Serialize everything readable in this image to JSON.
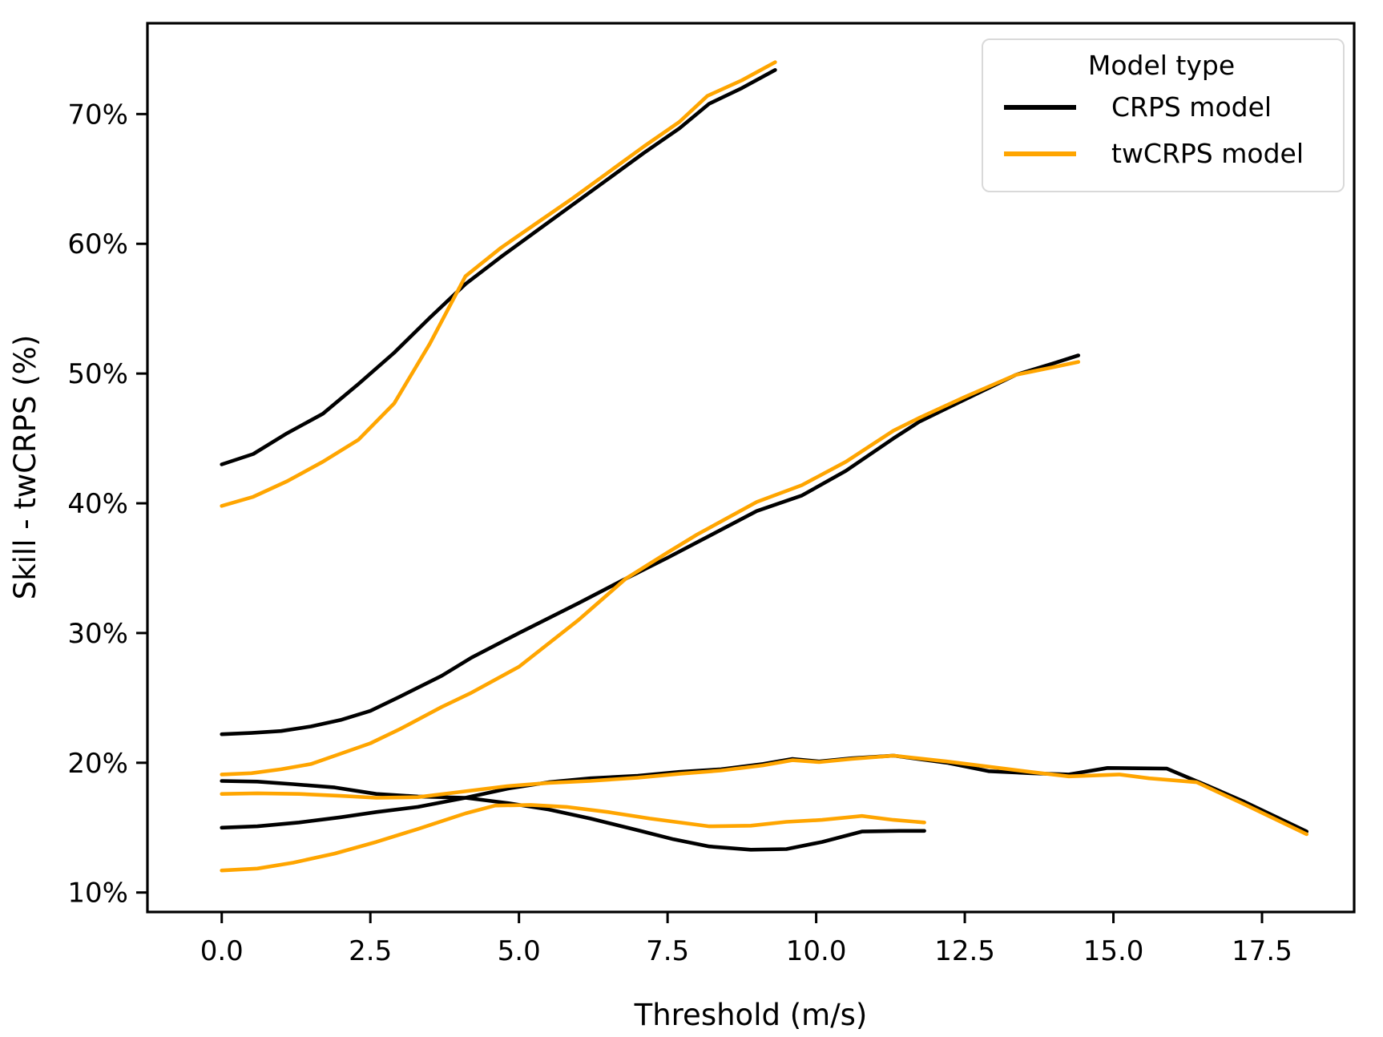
{
  "figure": {
    "background": "#ffffff",
    "text_color": "#000000"
  },
  "legend": {
    "title": "Model type",
    "entries": [
      {
        "key": "crps",
        "label": "CRPS model",
        "color": "#000000"
      },
      {
        "key": "twcrps",
        "label": "twCRPS model",
        "color": "#FFA500"
      }
    ]
  },
  "chart_data": {
    "type": "line",
    "title": "",
    "xlabel": "Threshold (m/s)",
    "ylabel": "Skill - twCRPS (%)",
    "xlim": [
      -1.25,
      19.05
    ],
    "ylim": [
      8.5,
      77.0
    ],
    "grid": false,
    "legend_position": "upper right",
    "x_ticks": {
      "values": [
        0,
        2.5,
        5,
        7.5,
        10,
        12.5,
        15,
        17.5
      ],
      "labels": [
        "0.0",
        "2.5",
        "5.0",
        "7.5",
        "10.0",
        "12.5",
        "15.0",
        "17.5"
      ]
    },
    "y_ticks": {
      "values": [
        10,
        20,
        30,
        40,
        50,
        60,
        70
      ],
      "labels": [
        "10%",
        "20%",
        "30%",
        "40%",
        "50%",
        "60%",
        "70%"
      ]
    },
    "series": [
      {
        "key": "crps-curve-a",
        "model": "CRPS model",
        "color": "#000000",
        "x": [
          0,
          0.53,
          1.1,
          1.7,
          2.3,
          2.9,
          3.5,
          4.1,
          4.7,
          5.3,
          5.9,
          6.5,
          7.1,
          7.7,
          8.2,
          8.75,
          9.31
        ],
        "y": [
          43.0,
          43.8,
          45.4,
          46.9,
          49.2,
          51.6,
          54.3,
          56.9,
          59.0,
          61.0,
          63.0,
          65.0,
          67.0,
          68.9,
          70.8,
          72.0,
          73.4
        ]
      },
      {
        "key": "crps-curve-b",
        "model": "CRPS model",
        "color": "#000000",
        "x": [
          0,
          0.5,
          1,
          1.5,
          2,
          2.5,
          3,
          3.7,
          4.2,
          5,
          6,
          6.8,
          7.5,
          8,
          9,
          9.76,
          10.5,
          11.3,
          11.74,
          12.5,
          13.36,
          14,
          14.41
        ],
        "y": [
          22.2,
          22.3,
          22.45,
          22.8,
          23.3,
          24.0,
          25.1,
          26.7,
          28.1,
          30.0,
          32.3,
          34.2,
          35.8,
          37.0,
          39.4,
          40.6,
          42.5,
          45.0,
          46.3,
          48.0,
          49.9,
          50.8,
          51.4
        ]
      },
      {
        "key": "crps-curve-c",
        "model": "CRPS model",
        "color": "#000000",
        "x": [
          0,
          0.6,
          1.3,
          2,
          2.6,
          3.3,
          4.1,
          4.8,
          5.5,
          6.2,
          7,
          7.7,
          8.4,
          9.1,
          9.6,
          10.05,
          10.6,
          11.3,
          12.2,
          12.9,
          13.6,
          14.25,
          14.9,
          15.9,
          16.6,
          17.2,
          18.25
        ],
        "y": [
          15.0,
          15.1,
          15.4,
          15.8,
          16.2,
          16.6,
          17.3,
          18.0,
          18.5,
          18.8,
          19.0,
          19.3,
          19.5,
          19.9,
          20.3,
          20.1,
          20.35,
          20.55,
          20.0,
          19.35,
          19.2,
          19.1,
          19.6,
          19.55,
          18.2,
          17.0,
          14.7
        ]
      },
      {
        "key": "crps-curve-d",
        "model": "CRPS model",
        "color": "#000000",
        "x": [
          0,
          0.6,
          1.2,
          1.9,
          2.6,
          3.3,
          4.1,
          4.8,
          5.5,
          6.2,
          7,
          7.6,
          8.2,
          8.9,
          9.5,
          10.1,
          10.77,
          11.4,
          11.82
        ],
        "y": [
          18.6,
          18.55,
          18.35,
          18.1,
          17.6,
          17.4,
          17.3,
          16.9,
          16.4,
          15.7,
          14.8,
          14.1,
          13.55,
          13.3,
          13.35,
          13.9,
          14.7,
          14.75,
          14.75
        ]
      },
      {
        "key": "twcrps-curve-a",
        "model": "twCRPS model",
        "color": "#FFA500",
        "x": [
          0,
          0.53,
          1.1,
          1.7,
          2.3,
          2.9,
          3.5,
          4.1,
          4.7,
          5.3,
          5.9,
          6.5,
          7.1,
          7.7,
          8.17,
          8.75,
          9.31
        ],
        "y": [
          39.8,
          40.5,
          41.7,
          43.2,
          44.9,
          47.7,
          52.3,
          57.5,
          59.7,
          61.6,
          63.5,
          65.5,
          67.5,
          69.4,
          71.4,
          72.6,
          74.0
        ]
      },
      {
        "key": "twcrps-curve-b",
        "model": "twCRPS model",
        "color": "#FFA500",
        "x": [
          0,
          0.5,
          1,
          1.5,
          2,
          2.5,
          3,
          3.7,
          4.2,
          5,
          6,
          6.8,
          7.5,
          8,
          9,
          9.76,
          10.5,
          11.3,
          11.74,
          12.5,
          13.36,
          14,
          14.41
        ],
        "y": [
          19.1,
          19.2,
          19.5,
          19.9,
          20.7,
          21.5,
          22.6,
          24.3,
          25.4,
          27.4,
          31.0,
          34.2,
          36.2,
          37.6,
          40.1,
          41.4,
          43.2,
          45.6,
          46.6,
          48.2,
          49.9,
          50.5,
          50.9
        ]
      },
      {
        "key": "twcrps-curve-c",
        "model": "twCRPS model",
        "color": "#FFA500",
        "x": [
          0,
          0.6,
          1.3,
          2,
          2.6,
          3.3,
          4.1,
          4.8,
          5.5,
          6.2,
          7,
          7.7,
          8.4,
          9.1,
          9.6,
          10.05,
          10.6,
          11.3,
          12.2,
          12.9,
          13.6,
          14.25,
          15.1,
          15.6,
          16.4,
          17.2,
          18.25
        ],
        "y": [
          17.6,
          17.65,
          17.6,
          17.45,
          17.3,
          17.35,
          17.8,
          18.2,
          18.45,
          18.6,
          18.85,
          19.15,
          19.4,
          19.8,
          20.2,
          20.05,
          20.3,
          20.55,
          20.1,
          19.7,
          19.3,
          18.95,
          19.1,
          18.8,
          18.5,
          16.8,
          14.5
        ]
      },
      {
        "key": "twcrps-curve-d",
        "model": "twCRPS model",
        "color": "#FFA500",
        "x": [
          0,
          0.6,
          1.2,
          1.9,
          2.6,
          3.3,
          4.1,
          4.6,
          5.2,
          5.8,
          6.5,
          7.2,
          8.2,
          8.9,
          9.5,
          10.1,
          10.77,
          11.3,
          11.82
        ],
        "y": [
          11.7,
          11.85,
          12.3,
          13.0,
          13.9,
          14.9,
          16.1,
          16.7,
          16.75,
          16.6,
          16.2,
          15.7,
          15.1,
          15.15,
          15.45,
          15.6,
          15.9,
          15.6,
          15.4
        ]
      }
    ]
  }
}
